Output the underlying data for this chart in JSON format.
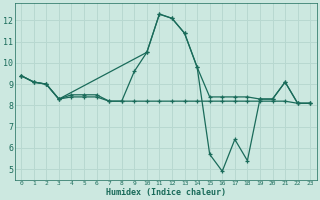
{
  "xlabel": "Humidex (Indice chaleur)",
  "background_color": "#cce8e0",
  "grid_color": "#b8d8d0",
  "line_color": "#1a6b5a",
  "xlim": [
    -0.5,
    23.5
  ],
  "ylim": [
    4.5,
    12.8
  ],
  "yticks": [
    5,
    6,
    7,
    8,
    9,
    10,
    11,
    12
  ],
  "xticks": [
    0,
    1,
    2,
    3,
    4,
    5,
    6,
    7,
    8,
    9,
    10,
    11,
    12,
    13,
    14,
    15,
    16,
    17,
    18,
    19,
    20,
    21,
    22,
    23
  ],
  "series": [
    {
      "x": [
        0,
        1,
        2,
        3,
        4,
        5,
        6,
        7,
        8,
        9,
        10,
        11,
        12,
        13,
        14,
        15,
        16,
        17,
        18,
        19,
        20,
        21,
        22,
        23
      ],
      "y": [
        9.4,
        9.1,
        9.0,
        8.3,
        8.5,
        8.5,
        8.5,
        8.2,
        8.2,
        9.6,
        10.5,
        12.3,
        12.1,
        11.4,
        9.8,
        8.4,
        8.4,
        8.4,
        8.4,
        8.3,
        8.3,
        9.1,
        8.1,
        8.1
      ]
    },
    {
      "x": [
        0,
        1,
        2,
        3,
        4,
        5,
        6,
        7,
        8,
        9,
        10,
        11,
        12,
        13,
        14,
        15,
        16,
        17,
        18,
        19,
        20,
        21,
        22,
        23
      ],
      "y": [
        9.4,
        9.1,
        9.0,
        8.3,
        8.4,
        8.4,
        8.4,
        8.2,
        8.2,
        8.2,
        8.2,
        8.2,
        8.2,
        8.2,
        8.2,
        8.2,
        8.2,
        8.2,
        8.2,
        8.2,
        8.2,
        8.2,
        8.1,
        8.1
      ]
    },
    {
      "x": [
        0,
        1,
        2,
        3,
        10,
        11,
        12,
        13,
        14,
        15,
        16,
        17,
        18,
        19,
        20,
        21,
        22,
        23
      ],
      "y": [
        9.4,
        9.1,
        9.0,
        8.3,
        10.5,
        12.3,
        12.1,
        11.4,
        9.8,
        5.7,
        4.9,
        6.4,
        5.4,
        8.3,
        8.3,
        9.1,
        8.1,
        8.1
      ]
    }
  ]
}
